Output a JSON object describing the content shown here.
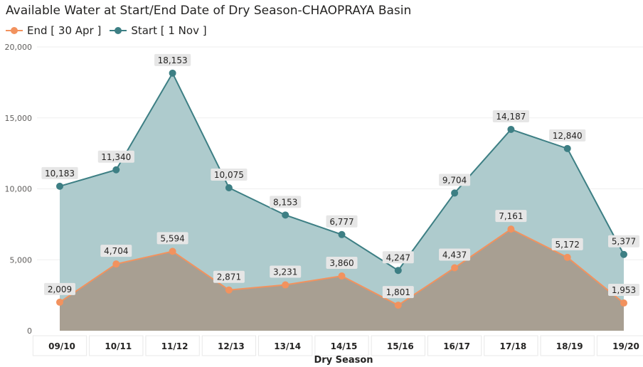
{
  "chart_data": {
    "type": "area",
    "title": "Available Water at Start/End Date of Dry Season-CHAOPRAYA Basin",
    "xlabel": "Dry Season",
    "ylabel": "",
    "ylim": [
      0,
      20000
    ],
    "yticks": [
      "20,000",
      "15,000",
      "10,000",
      "5,000",
      "0"
    ],
    "ytick_values": [
      20000,
      15000,
      10000,
      5000,
      0
    ],
    "categories": [
      "09/10",
      "10/11",
      "11/12",
      "12/13",
      "13/14",
      "14/15",
      "15/16",
      "16/17",
      "17/18",
      "18/19",
      "19/20"
    ],
    "legend_position": "top-left",
    "grid": true,
    "series": [
      {
        "name": "End [ 30 Apr ]",
        "color": "#F2925E",
        "fill": "#A89F92",
        "values": [
          2009,
          4704,
          5594,
          2871,
          3231,
          3860,
          1801,
          4437,
          7161,
          5172,
          1953
        ],
        "labels": [
          "2,009",
          "4,704",
          "5,594",
          "2,871",
          "3,231",
          "3,860",
          "1,801",
          "4,437",
          "7,161",
          "5,172",
          "1,953"
        ]
      },
      {
        "name": "Start [ 1 Nov ]",
        "color": "#3D7F84",
        "fill": "#AAC8CA",
        "values": [
          10183,
          11340,
          18153,
          10075,
          8153,
          6777,
          4247,
          9704,
          14187,
          12840,
          5377
        ],
        "labels": [
          "10,183",
          "11,340",
          "18,153",
          "10,075",
          "8,153",
          "6,777",
          "4,247",
          "9,704",
          "14,187",
          "12,840",
          "5,377"
        ]
      }
    ]
  }
}
